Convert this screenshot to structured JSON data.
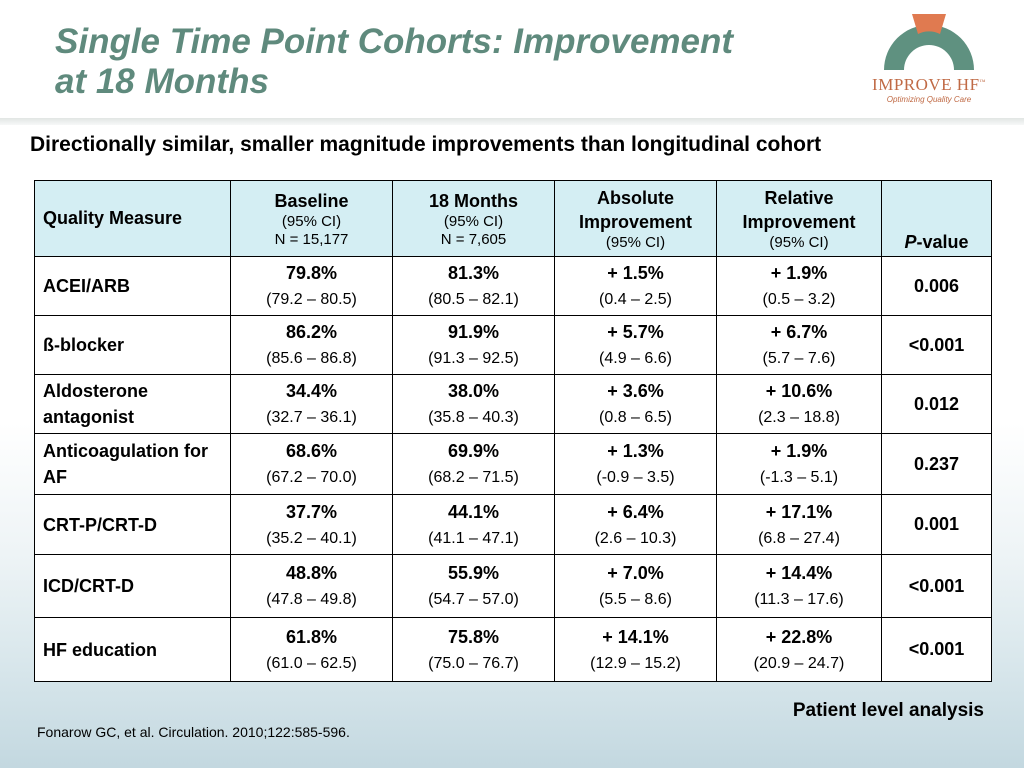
{
  "slide": {
    "title_line1": "Single Time Point Cohorts: Improvement",
    "title_line2": "at 18 Months",
    "subtitle": "Directionally similar, smaller magnitude improvements than longitudinal cohort",
    "logo": {
      "wordmark": "IMPROVE HF",
      "trademark": "™",
      "tagline": "Optimizing Quality Care",
      "arch_color": "#5f9180",
      "accent_color": "#e07a50"
    },
    "analysis_note": "Patient level analysis",
    "citation": "Fonarow GC, et al. Circulation. 2010;122:585-596."
  },
  "table": {
    "header": {
      "measure": "Quality Measure",
      "baseline": {
        "title": "Baseline",
        "ci": "(95% CI)",
        "n": "N = 15,177"
      },
      "m18": {
        "title": "18 Months",
        "ci": "(95% CI)",
        "n": "N = 7,605"
      },
      "absolute": {
        "title": "Absolute Improvement",
        "ci": "(95% CI)"
      },
      "relative": {
        "title": "Relative Improvement",
        "ci": "(95% CI)"
      },
      "pvalue_p": "P",
      "pvalue_rest": "-value"
    },
    "rows": [
      {
        "measure": "ACEI/ARB",
        "baseline": "79.8%",
        "baseline_ci": "(79.2 – 80.5)",
        "m18": "81.3%",
        "m18_ci": "(80.5 – 82.1)",
        "abs": "+ 1.5%",
        "abs_ci": "(0.4 – 2.5)",
        "rel": "+ 1.9%",
        "rel_ci": "(0.5 – 3.2)",
        "p": "0.006"
      },
      {
        "measure": "ß-blocker",
        "baseline": "86.2%",
        "baseline_ci": "(85.6 – 86.8)",
        "m18": "91.9%",
        "m18_ci": "(91.3 – 92.5)",
        "abs": "+ 5.7%",
        "abs_ci": "(4.9 – 6.6)",
        "rel": "+ 6.7%",
        "rel_ci": "(5.7 – 7.6)",
        "p": "<0.001"
      },
      {
        "measure": "Aldosterone antagonist",
        "baseline": "34.4%",
        "baseline_ci": "(32.7 – 36.1)",
        "m18": "38.0%",
        "m18_ci": "(35.8 – 40.3)",
        "abs": "+ 3.6%",
        "abs_ci": "(0.8 – 6.5)",
        "rel": "+ 10.6%",
        "rel_ci": "(2.3 – 18.8)",
        "p": "0.012"
      },
      {
        "measure": "Anticoagulation for AF",
        "baseline": "68.6%",
        "baseline_ci": "(67.2 – 70.0)",
        "m18": "69.9%",
        "m18_ci": "(68.2 – 71.5)",
        "abs": "+ 1.3%",
        "abs_ci": "(-0.9 – 3.5)",
        "rel": "+ 1.9%",
        "rel_ci": "(-1.3 – 5.1)",
        "p": "0.237"
      },
      {
        "measure": "CRT-P/CRT-D",
        "baseline": "37.7%",
        "baseline_ci": "(35.2 – 40.1)",
        "m18": "44.1%",
        "m18_ci": "(41.1 – 47.1)",
        "abs": "+ 6.4%",
        "abs_ci": "(2.6 – 10.3)",
        "rel": "+ 17.1%",
        "rel_ci": "(6.8 – 27.4)",
        "p": "0.001"
      },
      {
        "measure": "ICD/CRT-D",
        "baseline": "48.8%",
        "baseline_ci": "(47.8 – 49.8)",
        "m18": "55.9%",
        "m18_ci": "(54.7 – 57.0)",
        "abs": "+ 7.0%",
        "abs_ci": "(5.5 – 8.6)",
        "rel": "+ 14.4%",
        "rel_ci": "(11.3 – 17.6)",
        "p": "<0.001"
      },
      {
        "measure": "HF education",
        "baseline": "61.8%",
        "baseline_ci": "(61.0 – 62.5)",
        "m18": "75.8%",
        "m18_ci": "(75.0 – 76.7)",
        "abs": "+ 14.1%",
        "abs_ci": "(12.9 – 15.2)",
        "rel": "+ 22.8%",
        "rel_ci": "(20.9 – 24.7)",
        "p": "<0.001"
      }
    ]
  }
}
